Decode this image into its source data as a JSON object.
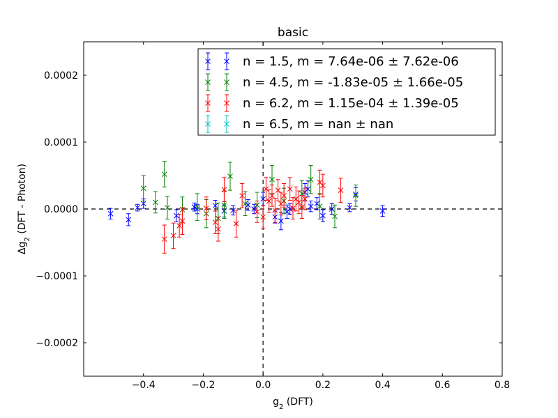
{
  "chart_data": {
    "type": "scatter",
    "title": "basic",
    "xlabel": {
      "base": "g",
      "sub": "2",
      "rest": " (DFT)"
    },
    "ylabel": {
      "pre": "Δg",
      "sub": "2",
      "rest": " (DFT - Photon)"
    },
    "xlim": [
      -0.6,
      0.8
    ],
    "ylim": [
      -0.00025,
      0.00025
    ],
    "xticks": [
      -0.4,
      -0.2,
      0.0,
      0.2,
      0.4,
      0.6,
      0.8
    ],
    "xtick_labels": [
      "−0.4",
      "−0.2",
      "0.0",
      "0.2",
      "0.4",
      "0.6",
      "0.8"
    ],
    "yticks": [
      -0.0002,
      -0.0001,
      0.0,
      0.0001,
      0.0002
    ],
    "ytick_labels": [
      "−0.0002",
      "−0.0001",
      "0.0000",
      "0.0001",
      "0.0002"
    ],
    "reference_lines": {
      "x": 0,
      "y": 0
    },
    "legend_position": "upper-right",
    "series": [
      {
        "name": "n = 1.5, m = 7.64e-06 ± 7.62e-06",
        "color": "#0000ff",
        "points": [
          {
            "x": -0.51,
            "y": -7e-06,
            "err": 8e-06
          },
          {
            "x": -0.45,
            "y": -1.6e-05,
            "err": 9e-06
          },
          {
            "x": -0.42,
            "y": 2e-06,
            "err": 5e-06
          },
          {
            "x": -0.4,
            "y": 8e-06,
            "err": 7e-06
          },
          {
            "x": -0.29,
            "y": -1e-05,
            "err": 9e-06
          },
          {
            "x": -0.23,
            "y": 3e-06,
            "err": 6e-06
          },
          {
            "x": -0.22,
            "y": 0.0,
            "err": 7e-06
          },
          {
            "x": -0.16,
            "y": 5e-06,
            "err": 8e-06
          },
          {
            "x": -0.13,
            "y": -3e-06,
            "err": 9e-06
          },
          {
            "x": -0.1,
            "y": -2e-06,
            "err": 7e-06
          },
          {
            "x": -0.05,
            "y": 6e-06,
            "err": 8e-06
          },
          {
            "x": -0.03,
            "y": 0.0,
            "err": 7e-06
          },
          {
            "x": 0.0,
            "y": 1.5e-05,
            "err": 1e-05
          },
          {
            "x": 0.04,
            "y": -1.2e-05,
            "err": 9e-06
          },
          {
            "x": 0.06,
            "y": -1.8e-05,
            "err": 1.3e-05
          },
          {
            "x": 0.08,
            "y": -4e-06,
            "err": 1e-05
          },
          {
            "x": 0.09,
            "y": 0.0,
            "err": 8e-06
          },
          {
            "x": 0.14,
            "y": 2.5e-05,
            "err": 1.3e-05
          },
          {
            "x": 0.15,
            "y": 3e-05,
            "err": 1.2e-05
          },
          {
            "x": 0.16,
            "y": 4e-06,
            "err": 8e-06
          },
          {
            "x": 0.18,
            "y": 8e-06,
            "err": 9e-06
          },
          {
            "x": 0.2,
            "y": -1e-05,
            "err": 9e-06
          },
          {
            "x": 0.23,
            "y": 0.0,
            "err": 8e-06
          },
          {
            "x": 0.29,
            "y": 2e-06,
            "err": 6e-06
          },
          {
            "x": 0.31,
            "y": 2.2e-05,
            "err": 1e-05
          },
          {
            "x": 0.4,
            "y": -3e-06,
            "err": 8e-06
          }
        ]
      },
      {
        "name": "n = 4.5, m = -1.83e-05 ± 1.66e-05",
        "color": "#008000",
        "points": [
          {
            "x": -0.4,
            "y": 3.1e-05,
            "err": 1.9e-05
          },
          {
            "x": -0.36,
            "y": 1e-05,
            "err": 1.6e-05
          },
          {
            "x": -0.33,
            "y": 5.2e-05,
            "err": 1.9e-05
          },
          {
            "x": -0.32,
            "y": 2e-06,
            "err": 1.7e-05
          },
          {
            "x": -0.27,
            "y": -1e-06,
            "err": 1.9e-05
          },
          {
            "x": -0.22,
            "y": 3e-06,
            "err": 2e-05
          },
          {
            "x": -0.19,
            "y": -7e-06,
            "err": 2.1e-05
          },
          {
            "x": -0.15,
            "y": -1.4e-05,
            "err": 2.3e-05
          },
          {
            "x": -0.13,
            "y": 6e-06,
            "err": 2e-05
          },
          {
            "x": -0.11,
            "y": 4.9e-05,
            "err": 2.1e-05
          },
          {
            "x": -0.06,
            "y": 8e-06,
            "err": 1.8e-05
          },
          {
            "x": -0.02,
            "y": 6e-06,
            "err": 1.9e-05
          },
          {
            "x": 0.03,
            "y": 4.4e-05,
            "err": 2.1e-05
          },
          {
            "x": 0.07,
            "y": 1.2e-05,
            "err": 1.9e-05
          },
          {
            "x": 0.13,
            "y": 2.3e-05,
            "err": 2e-05
          },
          {
            "x": 0.16,
            "y": 4.4e-05,
            "err": 2.1e-05
          },
          {
            "x": 0.19,
            "y": 4e-06,
            "err": 1.9e-05
          },
          {
            "x": 0.24,
            "y": -1.1e-05,
            "err": 1.7e-05
          },
          {
            "x": 0.31,
            "y": 2e-05,
            "err": 1.6e-05
          }
        ]
      },
      {
        "name": "n = 6.2, m = 1.15e-04 ± 1.39e-05",
        "color": "#ff0000",
        "points": [
          {
            "x": -0.33,
            "y": -4.5e-05,
            "err": 2.1e-05
          },
          {
            "x": -0.3,
            "y": -4e-05,
            "err": 1.9e-05
          },
          {
            "x": -0.28,
            "y": -2.5e-05,
            "err": 1.7e-05
          },
          {
            "x": -0.27,
            "y": -1.8e-05,
            "err": 2e-05
          },
          {
            "x": -0.19,
            "y": 1e-06,
            "err": 1.7e-05
          },
          {
            "x": -0.16,
            "y": -2e-05,
            "err": 1.7e-05
          },
          {
            "x": -0.15,
            "y": -3e-05,
            "err": 1.8e-05
          },
          {
            "x": -0.13,
            "y": 2.9e-05,
            "err": 1.8e-05
          },
          {
            "x": -0.09,
            "y": -2.2e-05,
            "err": 2e-05
          },
          {
            "x": -0.07,
            "y": 2e-05,
            "err": 1.8e-05
          },
          {
            "x": -0.02,
            "y": -4e-06,
            "err": 1.6e-05
          },
          {
            "x": 0.0,
            "y": -1.2e-05,
            "err": 1.7e-05
          },
          {
            "x": 0.01,
            "y": 3e-05,
            "err": 1.7e-05
          },
          {
            "x": 0.02,
            "y": 1.2e-05,
            "err": 1.7e-05
          },
          {
            "x": 0.03,
            "y": 2e-05,
            "err": 1.6e-05
          },
          {
            "x": 0.04,
            "y": -2e-06,
            "err": 1.8e-05
          },
          {
            "x": 0.05,
            "y": 2.8e-05,
            "err": 1.6e-05
          },
          {
            "x": 0.06,
            "y": 8e-06,
            "err": 1.7e-05
          },
          {
            "x": 0.07,
            "y": 2e-05,
            "err": 1.8e-05
          },
          {
            "x": 0.09,
            "y": 3e-05,
            "err": 1.7e-05
          },
          {
            "x": 0.1,
            "y": 1e-06,
            "err": 1.6e-05
          },
          {
            "x": 0.11,
            "y": 1.5e-05,
            "err": 1.8e-05
          },
          {
            "x": 0.12,
            "y": 1e-05,
            "err": 1.7e-05
          },
          {
            "x": 0.13,
            "y": 3e-06,
            "err": 1.7e-05
          },
          {
            "x": 0.14,
            "y": 1.5e-05,
            "err": 1.6e-05
          },
          {
            "x": 0.19,
            "y": 4e-05,
            "err": 1.8e-05
          },
          {
            "x": 0.2,
            "y": 3.5e-05,
            "err": 1.7e-05
          },
          {
            "x": 0.26,
            "y": 2.8e-05,
            "err": 1.8e-05
          }
        ]
      },
      {
        "name": "n = 6.5, m = nan ± nan",
        "color": "#00bfbf",
        "points": []
      }
    ]
  }
}
